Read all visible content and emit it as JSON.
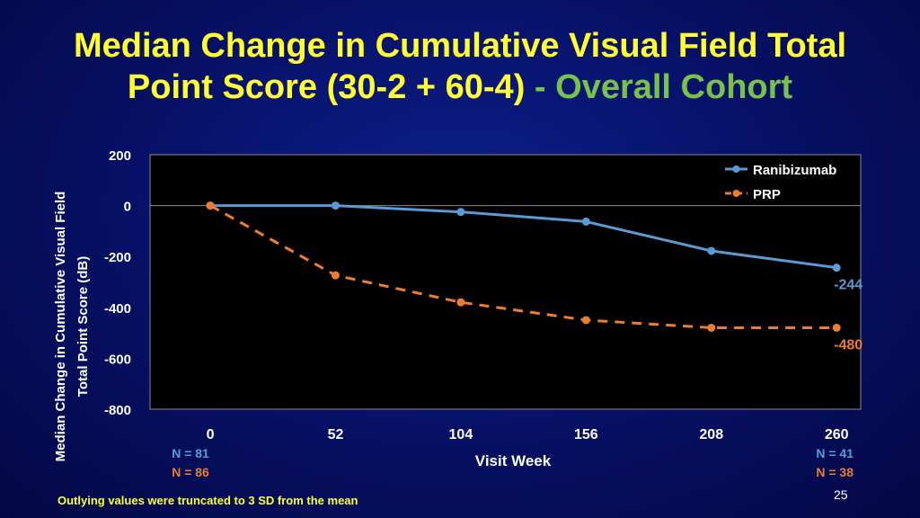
{
  "title": {
    "line1": "Median Change in Cumulative Visual Field Total",
    "line2_main": "Point Score (30-2 + 60-4)",
    "line2_sep": " - ",
    "line2_accent": "Overall Cohort"
  },
  "footnote": "Outlying values were truncated to 3 SD from the mean",
  "page_number": "25",
  "colors": {
    "title": "#ffff33",
    "accent": "#79c24a",
    "ranibizumab": "#5b9bd5",
    "prp": "#ed7d31",
    "plot_bg": "#000000"
  },
  "chart_data": {
    "type": "line",
    "title": "",
    "xlabel": "Visit Week",
    "ylabel_lines": [
      "Median Change in Cumulative Visual Field",
      "Total Point Score (dB)"
    ],
    "x": [
      0,
      52,
      104,
      156,
      208,
      260
    ],
    "x_tick_labels": [
      "0",
      "52",
      "104",
      "156",
      "208",
      "260"
    ],
    "y_ticks": [
      200,
      0,
      -200,
      -400,
      -600,
      -800
    ],
    "y_tick_labels": [
      "200",
      "0",
      "-200",
      "-400",
      "-600",
      "-800"
    ],
    "ylim": [
      -800,
      200
    ],
    "xlim": [
      -25,
      270
    ],
    "legend_position": "top-right",
    "series": [
      {
        "name": "Ranibizumab",
        "style": "solid",
        "values": [
          0,
          0,
          -25,
          -63,
          -178,
          -244
        ],
        "end_label": "-244"
      },
      {
        "name": "PRP",
        "style": "dashed",
        "values": [
          0,
          -274,
          -380,
          -450,
          -480,
          -480
        ],
        "end_label": "-480"
      }
    ],
    "n_labels": {
      "start": [
        "N = 81",
        "N = 86"
      ],
      "end": [
        "N = 41",
        "N = 38"
      ]
    }
  }
}
